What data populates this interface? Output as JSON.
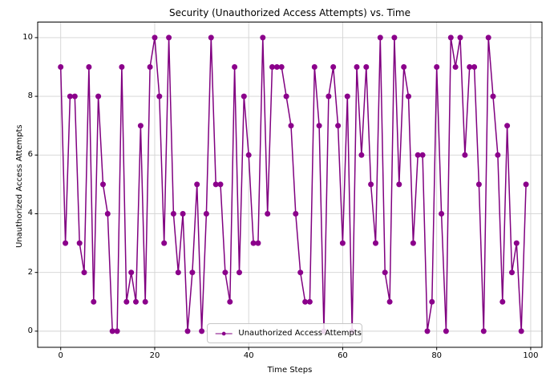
{
  "figure": {
    "title": "Security (Unauthorized Access Attempts) vs. Time",
    "xlabel": "Time Steps",
    "ylabel": "Unauthorized Access Attempts",
    "legend": {
      "label": "Unauthorized Access Attempts"
    },
    "colors": {
      "line": "#800080",
      "marker": "#8b008b",
      "grid": "#d3d3d3",
      "spine": "#000000",
      "background": "#ffffff",
      "text": "#000000"
    }
  },
  "chart_data": {
    "type": "line",
    "title": "Security (Unauthorized Access Attempts) vs. Time",
    "xlabel": "Time Steps",
    "ylabel": "Unauthorized Access Attempts",
    "marker": "o",
    "grid": true,
    "legend_position": "lower center",
    "xlim": [
      -4.9,
      102.4
    ],
    "ylim": [
      -0.55,
      10.53
    ],
    "xticks": [
      0,
      20,
      40,
      60,
      80,
      100
    ],
    "yticks": [
      0,
      2,
      4,
      6,
      8,
      10
    ],
    "x": [
      0,
      1,
      2,
      3,
      4,
      5,
      6,
      7,
      8,
      9,
      10,
      11,
      12,
      13,
      14,
      15,
      16,
      17,
      18,
      19,
      20,
      21,
      22,
      23,
      24,
      25,
      26,
      27,
      28,
      29,
      30,
      31,
      32,
      33,
      34,
      35,
      36,
      37,
      38,
      39,
      40,
      41,
      42,
      43,
      44,
      45,
      46,
      47,
      48,
      49,
      50,
      51,
      52,
      53,
      54,
      55,
      56,
      57,
      58,
      59,
      60,
      61,
      62,
      63,
      64,
      65,
      66,
      67,
      68,
      69,
      70,
      71,
      72,
      73,
      74,
      75,
      76,
      77,
      78,
      79,
      80,
      81,
      82,
      83,
      84,
      85,
      86,
      87,
      88,
      89,
      90,
      91,
      92,
      93,
      94,
      95,
      96,
      97,
      98,
      99
    ],
    "series": [
      {
        "name": "Unauthorized Access Attempts",
        "values": [
          9,
          3,
          8,
          8,
          3,
          2,
          9,
          1,
          8,
          5,
          4,
          0,
          0,
          9,
          1,
          2,
          1,
          7,
          1,
          9,
          10,
          8,
          3,
          10,
          4,
          2,
          4,
          0,
          2,
          5,
          0,
          4,
          10,
          5,
          5,
          2,
          1,
          9,
          2,
          8,
          6,
          3,
          3,
          10,
          4,
          9,
          9,
          9,
          8,
          7,
          4,
          2,
          1,
          1,
          9,
          7,
          0,
          8,
          9,
          7,
          3,
          8,
          0,
          9,
          6,
          9,
          5,
          3,
          10,
          2,
          1,
          10,
          5,
          9,
          8,
          3,
          6,
          6,
          0,
          1,
          9,
          4,
          0,
          10,
          9,
          10,
          6,
          9,
          9,
          5,
          0,
          10,
          8,
          6,
          1,
          7,
          2,
          3,
          0,
          5
        ]
      }
    ]
  }
}
